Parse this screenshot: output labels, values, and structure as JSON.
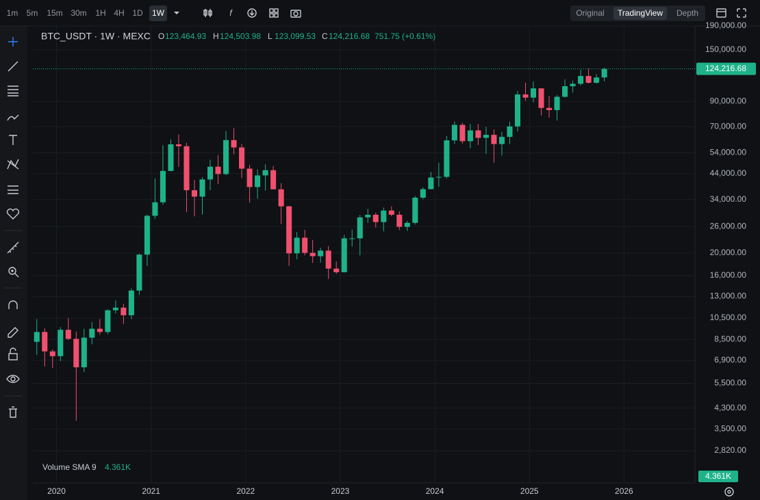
{
  "toolbar": {
    "intervals": [
      "1m",
      "5m",
      "15m",
      "30m",
      "1H",
      "4H",
      "1D",
      "1W"
    ],
    "selected_interval": "1W",
    "views": [
      "Original",
      "TradingView",
      "Depth"
    ],
    "selected_view": "TradingView"
  },
  "legend": {
    "symbol": "BTC_USDT · 1W · MEXC",
    "ohlc": [
      {
        "key": "O",
        "value": "123,464.93"
      },
      {
        "key": "H",
        "value": "124,503.98"
      },
      {
        "key": "L",
        "value": "123,099.53"
      },
      {
        "key": "C",
        "value": "124,216.68"
      }
    ],
    "change": "751.75 (+0.61%)"
  },
  "volume_indicator": {
    "name": "Volume SMA 9",
    "value": "4.361K"
  },
  "chart_data": {
    "type": "candlestick",
    "log_scale": true,
    "grid": true,
    "up_color": "#1fb28a",
    "down_color": "#f0506e",
    "x": [
      "2019-10",
      "2019-11",
      "2019-12",
      "2020-01",
      "2020-02",
      "2020-03",
      "2020-04",
      "2020-05",
      "2020-06",
      "2020-07",
      "2020-08",
      "2020-09",
      "2020-10",
      "2020-11",
      "2020-12",
      "2021-01",
      "2021-02",
      "2021-03",
      "2021-04",
      "2021-05",
      "2021-06",
      "2021-07",
      "2021-08",
      "2021-09",
      "2021-10",
      "2021-11",
      "2021-12",
      "2022-01",
      "2022-02",
      "2022-03",
      "2022-04",
      "2022-05",
      "2022-06",
      "2022-07",
      "2022-08",
      "2022-09",
      "2022-10",
      "2022-11",
      "2022-12",
      "2023-01",
      "2023-02",
      "2023-03",
      "2023-04",
      "2023-05",
      "2023-06",
      "2023-07",
      "2023-08",
      "2023-09",
      "2023-10",
      "2023-11",
      "2023-12",
      "2024-01",
      "2024-02",
      "2024-03",
      "2024-04",
      "2024-05",
      "2024-06",
      "2024-07",
      "2024-08",
      "2024-09",
      "2024-10",
      "2024-11",
      "2024-12",
      "2025-01",
      "2025-02",
      "2025-03",
      "2025-04",
      "2025-05",
      "2025-06",
      "2025-07",
      "2025-08",
      "2025-09",
      "2025-10"
    ],
    "open": [
      8300,
      9150,
      7550,
      7200,
      9350,
      8550,
      6450,
      8650,
      9450,
      9150,
      11350,
      11650,
      10800,
      13800,
      19700,
      28950,
      33100,
      45150,
      58800,
      57700,
      37300,
      35000,
      41500,
      47100,
      43800,
      61300,
      57000,
      46200,
      38500,
      43200,
      45500,
      37650,
      31800,
      19950,
      23300,
      20050,
      19400,
      20500,
      17150,
      16550,
      23150,
      23150,
      28500,
      29250,
      27200,
      30500,
      29250,
      25950,
      27000,
      34650,
      37700,
      42300,
      42600,
      61150,
      71300,
      60650,
      67500,
      62700,
      64600,
      58950,
      63300,
      70200,
      96400,
      93400,
      102400,
      84350,
      82550,
      94200,
      104600,
      107150,
      115750,
      108250,
      114050
    ],
    "high": [
      10400,
      9500,
      7700,
      9600,
      10500,
      9200,
      9450,
      10100,
      10400,
      11450,
      12500,
      12100,
      14100,
      19900,
      29300,
      41950,
      58300,
      61800,
      64850,
      59600,
      41300,
      42400,
      50500,
      52900,
      67000,
      69000,
      59050,
      48000,
      45850,
      48200,
      47450,
      40000,
      31950,
      24650,
      25200,
      22800,
      21100,
      21450,
      18400,
      23950,
      25250,
      29200,
      31000,
      29850,
      31400,
      31800,
      30250,
      27500,
      35200,
      38400,
      44750,
      48950,
      63900,
      73800,
      72800,
      71950,
      72000,
      70000,
      68200,
      66500,
      73600,
      99800,
      108350,
      109600,
      102500,
      95000,
      95750,
      111950,
      110550,
      123200,
      124450,
      117900,
      125700
    ],
    "low": [
      7300,
      6500,
      6400,
      6850,
      8450,
      3800,
      6150,
      8100,
      8900,
      8950,
      11000,
      9900,
      10400,
      13200,
      17600,
      28100,
      32300,
      45000,
      47000,
      30000,
      28800,
      29300,
      37300,
      39600,
      43300,
      53250,
      42000,
      33000,
      34300,
      37200,
      37600,
      26700,
      17600,
      18800,
      19550,
      18150,
      18200,
      15500,
      16250,
      16500,
      21350,
      19550,
      26950,
      25800,
      24800,
      28850,
      25150,
      24900,
      26550,
      34100,
      37600,
      38550,
      41900,
      59000,
      59200,
      56550,
      58400,
      53500,
      49000,
      52550,
      58900,
      66800,
      90500,
      89250,
      78250,
      76600,
      74400,
      93400,
      98250,
      105300,
      107300,
      107250,
      109700
    ],
    "close": [
      9150,
      7550,
      7200,
      9350,
      8550,
      6450,
      8650,
      9450,
      9150,
      11350,
      11650,
      10800,
      13800,
      19700,
      28950,
      33100,
      45150,
      58800,
      57700,
      37300,
      35000,
      41500,
      47100,
      43800,
      61300,
      57000,
      46200,
      38500,
      43200,
      45500,
      37650,
      31800,
      19950,
      23300,
      20050,
      19400,
      20500,
      17150,
      16550,
      23150,
      23150,
      28500,
      29250,
      27200,
      30500,
      29250,
      25950,
      27000,
      34650,
      37700,
      42300,
      42600,
      61150,
      71300,
      60650,
      67500,
      62700,
      64600,
      58950,
      63300,
      70200,
      96400,
      93400,
      102400,
      84350,
      82550,
      94200,
      104600,
      107150,
      115750,
      108250,
      114050,
      124216.68
    ],
    "xlim": [
      "2019-10",
      "2026-10"
    ],
    "xticks": [
      {
        "value": "2020-01",
        "label": "2020"
      },
      {
        "value": "2021-01",
        "label": "2021"
      },
      {
        "value": "2022-01",
        "label": "2022"
      },
      {
        "value": "2023-01",
        "label": "2023"
      },
      {
        "value": "2024-01",
        "label": "2024"
      },
      {
        "value": "2025-01",
        "label": "2025"
      },
      {
        "value": "2026-01",
        "label": "2026"
      }
    ],
    "ylim": [
      2050,
      190000
    ],
    "yticks": [
      {
        "value": 190000,
        "label": "190,000.00"
      },
      {
        "value": 150000,
        "label": "150,000.00"
      },
      {
        "value": 90000,
        "label": "90,000.00"
      },
      {
        "value": 70000,
        "label": "70,000.00"
      },
      {
        "value": 54000,
        "label": "54,000.00"
      },
      {
        "value": 44000,
        "label": "44,000.00"
      },
      {
        "value": 34000,
        "label": "34,000.00"
      },
      {
        "value": 26000,
        "label": "26,000.00"
      },
      {
        "value": 20000,
        "label": "20,000.00"
      },
      {
        "value": 16000,
        "label": "16,000.00"
      },
      {
        "value": 13000,
        "label": "13,000.00"
      },
      {
        "value": 10500,
        "label": "10,500.00"
      },
      {
        "value": 8500,
        "label": "8,500.00"
      },
      {
        "value": 6900,
        "label": "6,900.00"
      },
      {
        "value": 5500,
        "label": "5,500.00"
      },
      {
        "value": 4300,
        "label": "4,300.00"
      },
      {
        "value": 3500,
        "label": "3,500.00"
      },
      {
        "value": 2820,
        "label": "2,820.00"
      }
    ],
    "last_price": {
      "value": 124216.68,
      "label": "124,216.68"
    }
  }
}
